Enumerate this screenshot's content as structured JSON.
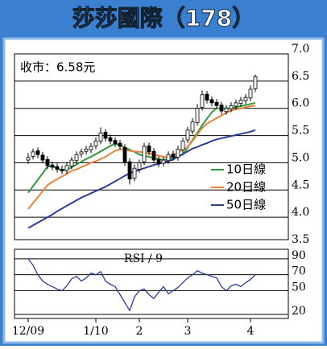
{
  "title": "莎莎國際（178）",
  "chart_data": [
    {
      "type": "candlestick",
      "annotation": "收市：6.58元",
      "categories": [
        "12/09",
        null,
        null,
        null,
        null,
        null,
        null,
        null,
        null,
        null,
        null,
        null,
        null,
        null,
        "1/10",
        null,
        null,
        null,
        null,
        null,
        null,
        null,
        null,
        "2",
        null,
        null,
        null,
        null,
        null,
        null,
        null,
        null,
        null,
        "3",
        null,
        null,
        null,
        null,
        null,
        null,
        null,
        null,
        null,
        null,
        null,
        null,
        "4",
        null
      ],
      "open": [
        5.05,
        5.12,
        5.22,
        5.14,
        5.06,
        4.96,
        4.93,
        4.88,
        4.86,
        4.94,
        5.04,
        5.16,
        5.21,
        5.24,
        5.31,
        5.4,
        5.56,
        5.46,
        5.41,
        5.36,
        5.28,
        5.02,
        4.72,
        4.88,
        5.02,
        5.31,
        5.21,
        5.06,
        4.99,
        5.04,
        5.16,
        5.1,
        5.24,
        5.42,
        5.58,
        5.74,
        6.02,
        6.26,
        6.16,
        6.11,
        6.06,
        5.94,
        5.99,
        6.04,
        6.09,
        6.14,
        6.19,
        6.36
      ],
      "high": [
        5.18,
        5.26,
        5.28,
        5.2,
        5.12,
        5.02,
        4.99,
        4.95,
        5.01,
        5.11,
        5.21,
        5.26,
        5.31,
        5.36,
        5.47,
        5.65,
        5.62,
        5.52,
        5.47,
        5.42,
        5.34,
        5.08,
        4.97,
        5.06,
        5.36,
        5.37,
        5.27,
        5.12,
        5.11,
        5.21,
        5.22,
        5.31,
        5.46,
        5.66,
        5.82,
        6.08,
        6.33,
        6.32,
        6.22,
        6.17,
        6.12,
        6.06,
        6.11,
        6.16,
        6.21,
        6.26,
        6.42,
        6.62
      ],
      "low": [
        4.98,
        5.06,
        5.09,
        4.99,
        4.89,
        4.86,
        4.82,
        4.79,
        4.8,
        4.88,
        4.98,
        5.1,
        5.15,
        5.18,
        5.25,
        5.34,
        5.39,
        5.34,
        5.29,
        5.24,
        4.94,
        4.6,
        4.66,
        4.82,
        4.96,
        5.14,
        4.99,
        4.92,
        4.93,
        4.98,
        5.04,
        5.04,
        5.18,
        5.36,
        5.52,
        5.68,
        5.96,
        6.09,
        6.04,
        5.99,
        5.89,
        5.88,
        5.93,
        5.98,
        6.03,
        6.08,
        6.13,
        6.3
      ],
      "close": [
        5.1,
        5.2,
        5.15,
        5.05,
        4.95,
        4.92,
        4.88,
        4.85,
        4.95,
        5.05,
        5.15,
        5.2,
        5.25,
        5.3,
        5.4,
        5.55,
        5.45,
        5.4,
        5.35,
        5.3,
        5.0,
        4.7,
        4.9,
        5.0,
        5.3,
        5.2,
        5.05,
        4.98,
        5.05,
        5.15,
        5.1,
        5.25,
        5.4,
        5.6,
        5.75,
        6.0,
        6.25,
        6.15,
        6.1,
        6.05,
        5.95,
        6.0,
        6.05,
        6.1,
        6.15,
        6.2,
        6.35,
        6.58
      ],
      "series": [
        {
          "name": "10日線",
          "color": "#2e9a3a",
          "values": [
            4.45,
            4.57,
            4.69,
            4.81,
            4.93,
            4.93,
            4.9,
            4.86,
            4.87,
            4.92,
            4.97,
            5.02,
            5.07,
            5.11,
            5.16,
            5.21,
            5.26,
            5.31,
            5.35,
            5.32,
            5.28,
            5.24,
            5.2,
            5.15,
            5.13,
            5.11,
            5.09,
            5.07,
            5.05,
            5.07,
            5.09,
            5.12,
            5.15,
            5.28,
            5.42,
            5.55,
            5.69,
            5.81,
            5.93,
            6.0,
            6.0,
            6.0,
            6.0,
            6.02,
            6.04,
            6.06,
            6.08,
            6.1
          ]
        },
        {
          "name": "20日線",
          "color": "#e8833a",
          "values": [
            4.15,
            4.26,
            4.37,
            4.48,
            4.59,
            4.65,
            4.7,
            4.75,
            4.8,
            4.85,
            4.88,
            4.92,
            4.96,
            5.0,
            5.03,
            5.07,
            5.11,
            5.17,
            5.22,
            5.25,
            5.24,
            5.22,
            5.21,
            5.2,
            5.19,
            5.17,
            5.15,
            5.13,
            5.11,
            5.1,
            5.14,
            5.19,
            5.24,
            5.29,
            5.4,
            5.52,
            5.64,
            5.72,
            5.77,
            5.82,
            5.87,
            5.92,
            5.96,
            5.98,
            6.0,
            6.02,
            6.04,
            6.05
          ]
        },
        {
          "name": "50日線",
          "color": "#2b3f9a",
          "values": [
            3.8,
            3.85,
            3.9,
            3.95,
            4.0,
            4.05,
            4.11,
            4.16,
            4.21,
            4.26,
            4.31,
            4.36,
            4.4,
            4.44,
            4.48,
            4.52,
            4.56,
            4.61,
            4.66,
            4.71,
            4.76,
            4.81,
            4.84,
            4.87,
            4.9,
            4.93,
            4.96,
            4.98,
            5.01,
            5.03,
            5.06,
            5.11,
            5.16,
            5.21,
            5.26,
            5.29,
            5.33,
            5.36,
            5.4,
            5.43,
            5.45,
            5.47,
            5.49,
            5.51,
            5.53,
            5.55,
            5.57,
            5.6
          ]
        }
      ],
      "ylim": [
        3.5,
        7.0
      ],
      "yticks": [
        {
          "value": 7.0,
          "label": "7.0"
        },
        6.5,
        {
          "value": 6.0,
          "label": "6.0"
        },
        5.5,
        {
          "value": 5.0,
          "label": "5.0"
        },
        4.5,
        {
          "value": 4.0,
          "label": "4.0"
        },
        3.5
      ],
      "grid": true
    },
    {
      "type": "line",
      "title": "RSI / 9",
      "color": "#2a3d9c",
      "values": [
        90,
        82,
        70,
        62,
        58,
        55,
        52,
        50,
        56,
        65,
        68,
        62,
        66,
        72,
        70,
        74,
        62,
        58,
        55,
        45,
        35,
        25,
        42,
        50,
        52,
        45,
        40,
        48,
        55,
        46,
        50,
        54,
        60,
        66,
        70,
        75,
        72,
        70,
        68,
        66,
        55,
        50,
        56,
        58,
        55,
        60,
        64,
        70
      ],
      "ylim": [
        15,
        100
      ],
      "yticks": [
        90,
        70,
        50,
        20
      ],
      "grid": true
    }
  ]
}
